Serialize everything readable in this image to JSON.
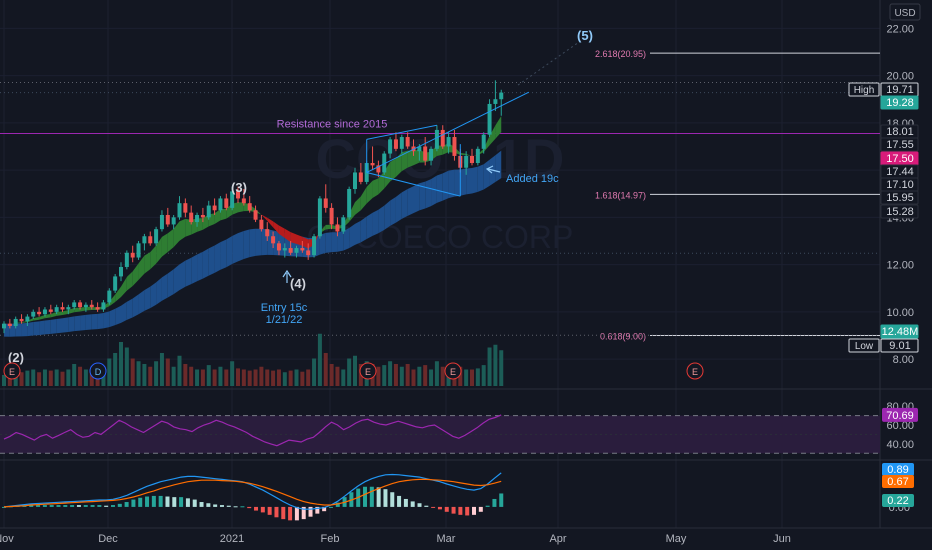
{
  "chart_data": [
    {
      "type": "candlestick",
      "watermark": {
        "symbol": "COO · 1D",
        "name": "COCOECO CORP"
      },
      "currency": "USD",
      "x_ticks": [
        "Nov",
        "Dec",
        "2021",
        "Feb",
        "Mar",
        "Apr",
        "May",
        "Jun"
      ],
      "y_ticks": [
        "22.00",
        "20.00",
        "18.00",
        "16.00",
        "14.00",
        "12.00",
        "10.00",
        "8.00"
      ],
      "ylim": [
        7.2,
        23.2
      ],
      "price_labels": [
        {
          "tag": "High",
          "value": "19.71",
          "color": "#131722",
          "text_color": "#d1d4dc",
          "border": "#d1d4dc"
        },
        {
          "value": "19.28",
          "color": "#26a69a",
          "text_color": "#ffffff"
        },
        {
          "value": "18.01",
          "color": "#131722",
          "text_color": "#d1d4dc",
          "border": "#2a2e39"
        },
        {
          "value": "17.55",
          "color": "#131722",
          "text_color": "#d1d4dc",
          "border": "#2a2e39"
        },
        {
          "value": "17.50",
          "color": "#d81b7a",
          "text_color": "#ffffff"
        },
        {
          "value": "17.44",
          "color": "#131722",
          "text_color": "#d1d4dc",
          "border": "#2a2e39"
        },
        {
          "value": "17.10",
          "color": "#131722",
          "text_color": "#d1d4dc",
          "border": "#2a2e39"
        },
        {
          "value": "15.95",
          "color": "#131722",
          "text_color": "#d1d4dc",
          "border": "#2a2e39"
        },
        {
          "value": "15.28",
          "color": "#131722",
          "text_color": "#d1d4dc",
          "border": "#2a2e39"
        },
        {
          "value": "12.48M",
          "color": "#26a69a",
          "text_color": "#ffffff"
        },
        {
          "tag": "Low",
          "value": "9.01",
          "color": "#131722",
          "text_color": "#d1d4dc",
          "border": "#d1d4dc"
        }
      ],
      "fib_levels": [
        {
          "label": "2.618(20.95)",
          "price": 20.95
        },
        {
          "label": "1.618(14.97)",
          "price": 14.97
        },
        {
          "label": "0.618(9.00)",
          "price": 9.0
        }
      ],
      "resistance": {
        "label": "Resistance since 2015",
        "price": 17.55
      },
      "annotations": {
        "wave_2": "(2)",
        "wave_3": "(3)",
        "wave_4": "(4)",
        "wave_5": "(5)",
        "entry_line1": "Entry 15c",
        "entry_line2": "1/21/22",
        "added": "Added 19c"
      },
      "event_markers": [
        "E",
        "D",
        "E",
        "E",
        "E"
      ],
      "candles": [
        [
          9.3,
          9.6,
          9.1,
          9.5
        ],
        [
          9.5,
          9.7,
          9.3,
          9.4
        ],
        [
          9.4,
          9.8,
          9.3,
          9.7
        ],
        [
          9.7,
          9.9,
          9.5,
          9.6
        ],
        [
          9.6,
          9.9,
          9.4,
          9.8
        ],
        [
          9.8,
          10.1,
          9.7,
          10.0
        ],
        [
          10.0,
          10.2,
          9.8,
          9.9
        ],
        [
          9.9,
          10.2,
          9.8,
          10.1
        ],
        [
          10.1,
          10.3,
          9.9,
          10.0
        ],
        [
          10.0,
          10.3,
          9.9,
          10.2
        ],
        [
          10.2,
          10.4,
          10.0,
          10.1
        ],
        [
          10.1,
          10.3,
          9.9,
          10.2
        ],
        [
          10.2,
          10.5,
          10.1,
          10.4
        ],
        [
          10.4,
          10.5,
          10.1,
          10.2
        ],
        [
          10.2,
          10.4,
          10.0,
          10.3
        ],
        [
          10.3,
          10.5,
          10.1,
          10.2
        ],
        [
          10.2,
          10.4,
          10.0,
          10.1
        ],
        [
          10.1,
          10.5,
          10.0,
          10.4
        ],
        [
          10.4,
          11.0,
          10.3,
          10.9
        ],
        [
          10.9,
          11.6,
          10.8,
          11.5
        ],
        [
          11.5,
          12.1,
          11.3,
          11.9
        ],
        [
          11.9,
          12.6,
          11.8,
          12.5
        ],
        [
          12.5,
          12.8,
          12.1,
          12.3
        ],
        [
          12.3,
          13.0,
          12.2,
          12.9
        ],
        [
          12.9,
          13.3,
          12.6,
          13.2
        ],
        [
          13.2,
          13.4,
          12.8,
          12.9
        ],
        [
          12.9,
          13.6,
          12.8,
          13.5
        ],
        [
          13.5,
          14.3,
          13.4,
          14.1
        ],
        [
          14.1,
          14.4,
          13.6,
          13.7
        ],
        [
          13.7,
          14.1,
          13.5,
          14.0
        ],
        [
          14.0,
          14.9,
          13.9,
          14.6
        ],
        [
          14.6,
          14.8,
          14.0,
          14.2
        ],
        [
          14.2,
          14.5,
          13.7,
          13.8
        ],
        [
          13.8,
          14.2,
          13.6,
          14.1
        ],
        [
          14.1,
          14.4,
          13.8,
          14.0
        ],
        [
          14.0,
          14.7,
          13.9,
          14.5
        ],
        [
          14.5,
          14.8,
          14.1,
          14.3
        ],
        [
          14.3,
          14.9,
          14.2,
          14.8
        ],
        [
          14.8,
          15.0,
          14.3,
          14.4
        ],
        [
          14.4,
          15.3,
          14.3,
          15.1
        ],
        [
          15.1,
          15.3,
          14.6,
          14.8
        ],
        [
          14.8,
          15.2,
          14.5,
          14.6
        ],
        [
          14.6,
          14.9,
          14.2,
          14.3
        ],
        [
          14.3,
          14.5,
          13.8,
          13.9
        ],
        [
          13.9,
          14.1,
          13.4,
          13.5
        ],
        [
          13.5,
          13.8,
          13.0,
          13.2
        ],
        [
          13.2,
          13.4,
          12.7,
          12.9
        ],
        [
          12.9,
          13.0,
          12.4,
          12.6
        ],
        [
          12.6,
          12.9,
          12.3,
          12.7
        ],
        [
          12.7,
          13.0,
          12.4,
          12.5
        ],
        [
          12.5,
          12.8,
          12.3,
          12.7
        ],
        [
          12.7,
          13.0,
          12.5,
          12.6
        ],
        [
          12.6,
          12.9,
          12.2,
          12.4
        ],
        [
          12.4,
          13.3,
          12.3,
          13.2
        ],
        [
          13.2,
          14.9,
          13.1,
          14.8
        ],
        [
          14.8,
          15.4,
          14.2,
          14.4
        ],
        [
          14.4,
          14.6,
          13.5,
          13.7
        ],
        [
          13.7,
          14.0,
          13.2,
          13.4
        ],
        [
          13.4,
          14.1,
          13.3,
          14.0
        ],
        [
          14.0,
          15.3,
          13.9,
          15.2
        ],
        [
          15.2,
          16.1,
          15.0,
          15.9
        ],
        [
          15.9,
          16.3,
          15.4,
          15.5
        ],
        [
          15.5,
          16.4,
          15.4,
          16.3
        ],
        [
          16.3,
          17.0,
          16.0,
          16.2
        ],
        [
          16.2,
          16.4,
          15.7,
          15.9
        ],
        [
          15.9,
          16.8,
          15.8,
          16.7
        ],
        [
          16.7,
          17.4,
          16.5,
          17.3
        ],
        [
          17.3,
          17.6,
          16.8,
          16.9
        ],
        [
          16.9,
          17.5,
          16.7,
          17.4
        ],
        [
          17.4,
          17.6,
          16.9,
          17.0
        ],
        [
          17.0,
          17.3,
          16.6,
          16.8
        ],
        [
          16.8,
          17.1,
          16.4,
          17.0
        ],
        [
          17.0,
          17.4,
          16.2,
          16.4
        ],
        [
          16.4,
          17.0,
          16.2,
          16.9
        ],
        [
          16.9,
          17.9,
          16.8,
          17.7
        ],
        [
          17.7,
          17.9,
          16.9,
          17.0
        ],
        [
          17.0,
          17.6,
          16.7,
          17.4
        ],
        [
          17.4,
          17.7,
          16.4,
          16.6
        ],
        [
          16.6,
          16.9,
          15.9,
          16.1
        ],
        [
          16.1,
          16.8,
          15.8,
          16.6
        ],
        [
          16.6,
          16.9,
          16.2,
          16.3
        ],
        [
          16.3,
          17.0,
          16.2,
          16.9
        ],
        [
          16.9,
          17.6,
          16.7,
          17.5
        ],
        [
          17.5,
          19.0,
          17.4,
          18.8
        ],
        [
          18.8,
          19.8,
          18.5,
          19.0
        ],
        [
          19.0,
          19.4,
          18.3,
          19.28
        ]
      ],
      "volume": [
        0.2,
        0.25,
        0.3,
        0.25,
        0.28,
        0.3,
        0.25,
        0.3,
        0.28,
        0.3,
        0.26,
        0.3,
        0.4,
        0.35,
        0.3,
        0.3,
        0.28,
        0.3,
        0.5,
        0.6,
        0.8,
        0.7,
        0.5,
        0.45,
        0.4,
        0.35,
        0.45,
        0.6,
        0.5,
        0.35,
        0.55,
        0.4,
        0.35,
        0.3,
        0.3,
        0.38,
        0.3,
        0.35,
        0.3,
        0.45,
        0.32,
        0.3,
        0.28,
        0.3,
        0.35,
        0.3,
        0.28,
        0.3,
        0.25,
        0.28,
        0.3,
        0.26,
        0.3,
        0.5,
        0.95,
        0.6,
        0.4,
        0.35,
        0.3,
        0.5,
        0.55,
        0.4,
        0.45,
        0.4,
        0.35,
        0.38,
        0.45,
        0.4,
        0.35,
        0.4,
        0.3,
        0.35,
        0.38,
        0.3,
        0.45,
        0.35,
        0.32,
        0.4,
        0.35,
        0.3,
        0.3,
        0.32,
        0.38,
        0.7,
        0.75,
        0.65
      ],
      "rsi": {
        "value_label": "70.69",
        "ticks": [
          "80.00",
          "60.00",
          "40.00"
        ],
        "ylim": [
          25,
          95
        ],
        "bands": [
          70,
          30
        ],
        "values": [
          45,
          48,
          52,
          50,
          47,
          44,
          48,
          50,
          46,
          49,
          52,
          55,
          50,
          47,
          48,
          52,
          50,
          55,
          60,
          65,
          62,
          58,
          55,
          52,
          56,
          60,
          64,
          62,
          58,
          56,
          55,
          53,
          57,
          60,
          62,
          65,
          63,
          60,
          58,
          55,
          52,
          48,
          45,
          42,
          40,
          38,
          41,
          44,
          43,
          42,
          45,
          47,
          52,
          58,
          63,
          60,
          55,
          58,
          62,
          65,
          66,
          63,
          61,
          60,
          62,
          64,
          62,
          60,
          58,
          57,
          59,
          60,
          56,
          52,
          48,
          46,
          49,
          53,
          57,
          62,
          66,
          68,
          70.69
        ]
      },
      "macd": {
        "ticks": [
          "0.00"
        ],
        "ylim": [
          -0.5,
          1.15
        ],
        "labels": [
          {
            "value": "0.89",
            "color": "#2196f3"
          },
          {
            "value": "0.67",
            "color": "#ff6d00"
          },
          {
            "value": "0.22",
            "color": "#26a69a"
          }
        ],
        "macd_line": [
          0.0,
          0.02,
          0.04,
          0.06,
          0.08,
          0.09,
          0.1,
          0.11,
          0.12,
          0.13,
          0.14,
          0.15,
          0.16,
          0.17,
          0.18,
          0.18,
          0.2,
          0.24,
          0.3,
          0.38,
          0.46,
          0.54,
          0.6,
          0.66,
          0.7,
          0.74,
          0.78,
          0.8,
          0.8,
          0.78,
          0.76,
          0.74,
          0.72,
          0.7,
          0.68,
          0.66,
          0.6,
          0.52,
          0.44,
          0.34,
          0.24,
          0.14,
          0.05,
          -0.02,
          -0.06,
          -0.06,
          -0.04,
          -0.02,
          0.05,
          0.15,
          0.28,
          0.42,
          0.55,
          0.66,
          0.74,
          0.8,
          0.84,
          0.85,
          0.84,
          0.82,
          0.8,
          0.78,
          0.74,
          0.7,
          0.66,
          0.6,
          0.55,
          0.5,
          0.46,
          0.44,
          0.48,
          0.6,
          0.75,
          0.89
        ],
        "signal_line": [
          0.0,
          0.01,
          0.02,
          0.03,
          0.05,
          0.06,
          0.07,
          0.08,
          0.09,
          0.1,
          0.11,
          0.12,
          0.13,
          0.14,
          0.15,
          0.16,
          0.17,
          0.19,
          0.22,
          0.26,
          0.31,
          0.37,
          0.42,
          0.48,
          0.53,
          0.58,
          0.62,
          0.66,
          0.68,
          0.7,
          0.7,
          0.7,
          0.69,
          0.68,
          0.67,
          0.65,
          0.62,
          0.58,
          0.53,
          0.47,
          0.41,
          0.34,
          0.27,
          0.2,
          0.14,
          0.1,
          0.07,
          0.05,
          0.05,
          0.08,
          0.12,
          0.18,
          0.25,
          0.33,
          0.41,
          0.48,
          0.55,
          0.61,
          0.66,
          0.69,
          0.71,
          0.72,
          0.72,
          0.71,
          0.7,
          0.68,
          0.66,
          0.63,
          0.6,
          0.57,
          0.56,
          0.58,
          0.62,
          0.67
        ]
      }
    }
  ]
}
